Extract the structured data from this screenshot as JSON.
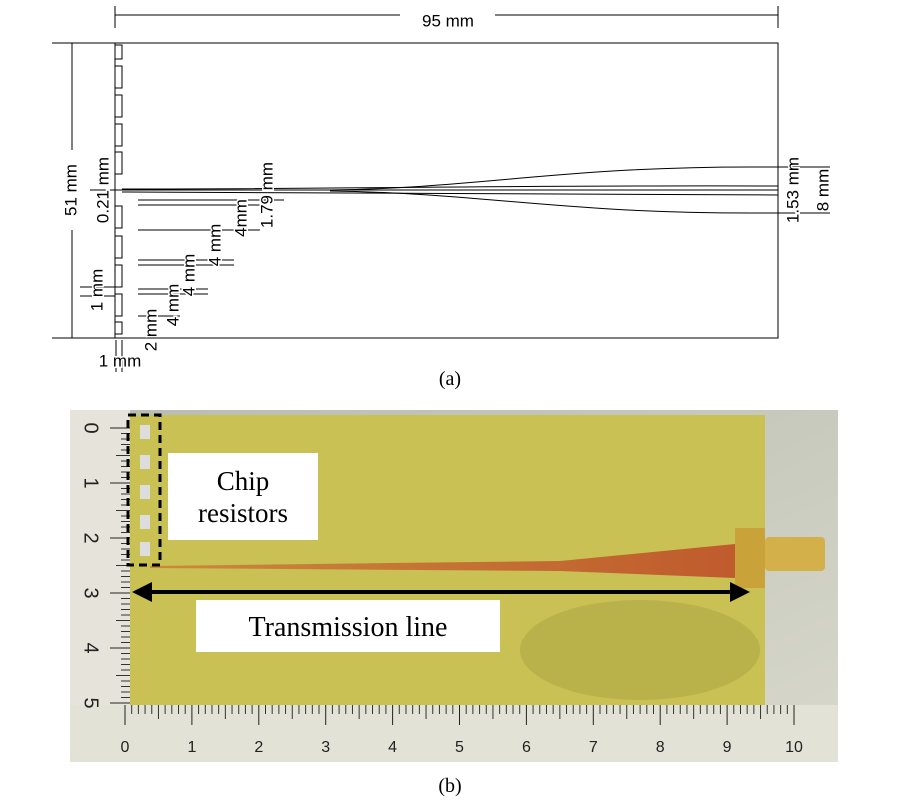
{
  "panel_a": {
    "caption": "(a)",
    "dimension_labels": [
      "95 mm",
      "51 mm",
      "0.21 mm",
      "1.79 mm",
      "4mm",
      "4 mm",
      "4 mm",
      "4 mm",
      "2 mm",
      "1 mm",
      "1 mm",
      "1.53 mm",
      "8 mm"
    ]
  },
  "panel_b": {
    "caption": "(b)",
    "annotations": {
      "chip": "Chip\nresistors",
      "line": "Transmission line"
    },
    "ruler_bottom": [
      "0",
      "1",
      "2",
      "3",
      "4",
      "5",
      "6",
      "7",
      "8",
      "9",
      "10"
    ],
    "ruler_left": [
      "0",
      "1",
      "2",
      "3",
      "4",
      "5"
    ]
  }
}
